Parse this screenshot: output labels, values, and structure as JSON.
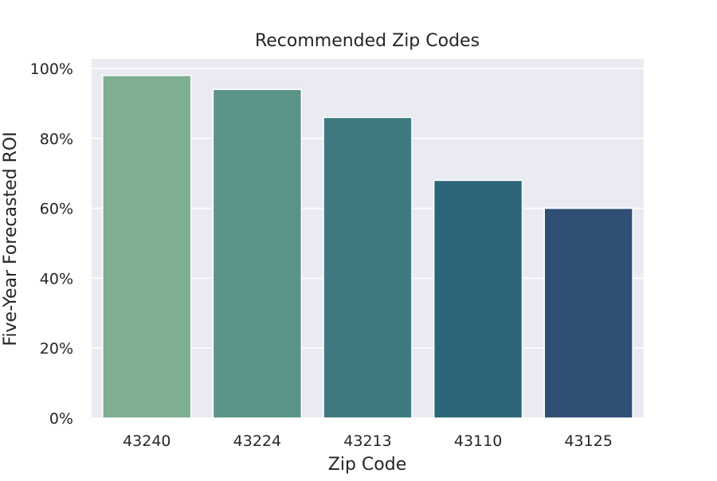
{
  "chart_data": {
    "type": "bar",
    "title": "Recommended Zip Codes",
    "xlabel": "Zip Code",
    "ylabel": "Five-Year Forecasted ROI",
    "categories": [
      "43240",
      "43224",
      "43213",
      "43110",
      "43125"
    ],
    "values": [
      0.98,
      0.94,
      0.86,
      0.68,
      0.6
    ],
    "ylim": [
      0,
      1.0
    ],
    "yticks": [
      0,
      0.2,
      0.4,
      0.6,
      0.8,
      1.0
    ],
    "ytick_labels": [
      "0%",
      "20%",
      "40%",
      "60%",
      "80%",
      "100%"
    ],
    "grid": true,
    "legend": "none",
    "colors": {
      "plot_background": "#eaeaf2",
      "grid": "#ffffff",
      "text": "#262626",
      "bars": [
        "#7eaf92",
        "#5a9488",
        "#3f7a81",
        "#2c6579",
        "#2f4f75"
      ]
    }
  }
}
